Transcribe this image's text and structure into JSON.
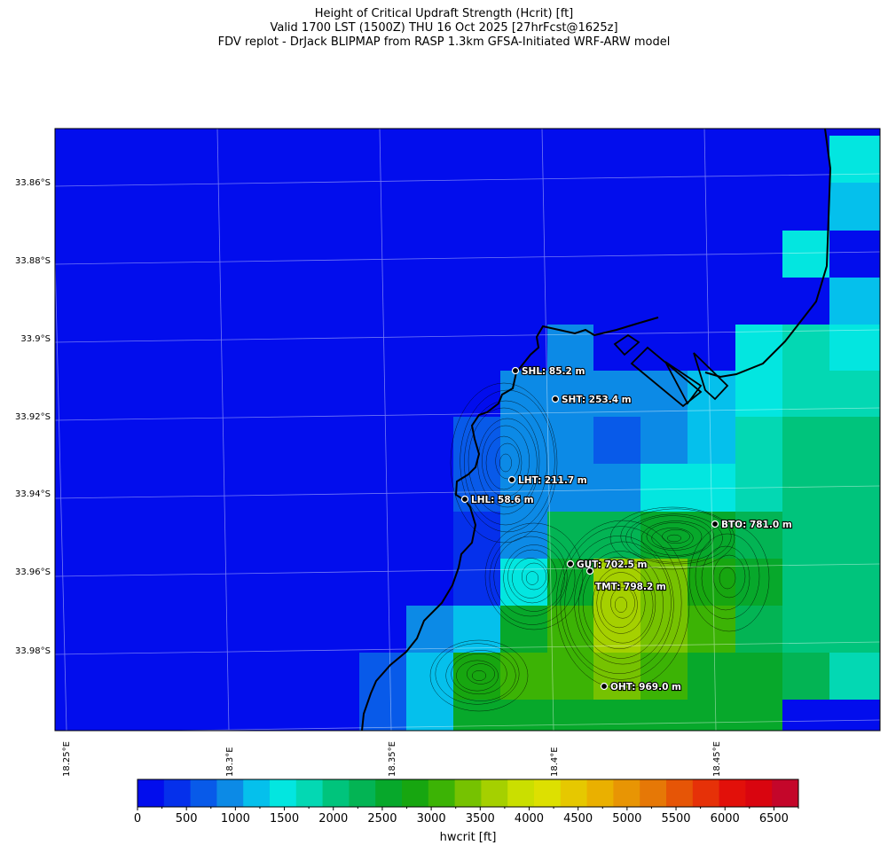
{
  "title": {
    "line1": "Height of Critical Updraft Strength (Hcrit) [ft]",
    "line2": "Valid 1700 LST (1500Z) THU 16 Oct 2025 [27hrFcst@1625z]",
    "line3": "FDV replot - DrJack BLIPMAP from RASP 1.3km GFSA-Initiated WRF-ARW model"
  },
  "axes": {
    "lat_labels": [
      "33.86°S",
      "33.88°S",
      "33.9°S",
      "33.92°S",
      "33.94°S",
      "33.96°S",
      "33.98°S"
    ],
    "lon_labels": [
      "18.25°E",
      "18.3°E",
      "18.35°E",
      "18.4°E",
      "18.45°E"
    ]
  },
  "colorbar": {
    "label": "hwcrit [ft]",
    "ticks": [
      "0",
      "500",
      "1000",
      "1500",
      "2000",
      "2500",
      "3000",
      "3500",
      "4000",
      "4500",
      "5000",
      "5500",
      "6000",
      "6500"
    ],
    "colors": [
      "#020ded",
      "#0530eb",
      "#085ae9",
      "#0c8ae6",
      "#05c0ec",
      "#03e6e0",
      "#03d8b3",
      "#00c47c",
      "#03b454",
      "#07a82b",
      "#17a610",
      "#3cb305",
      "#76c201",
      "#a5d000",
      "#cadf00",
      "#dde001",
      "#e6c800",
      "#eab000",
      "#e89504",
      "#e67806",
      "#e65506",
      "#e63108",
      "#e2100a",
      "#d9050f",
      "#c4062a"
    ],
    "max": 6750
  },
  "stations": [
    {
      "label": "SHL: 85.2 m"
    },
    {
      "label": "SHT: 253.4 m"
    },
    {
      "label": "LHT: 211.7 m"
    },
    {
      "label": "LHL: 58.6 m"
    },
    {
      "label": "BTO: 781.0 m"
    },
    {
      "label": "GUT: 702.5 m"
    },
    {
      "label": "TMT: 798.2 m"
    },
    {
      "label": "OHT: 969.0 m"
    }
  ]
}
